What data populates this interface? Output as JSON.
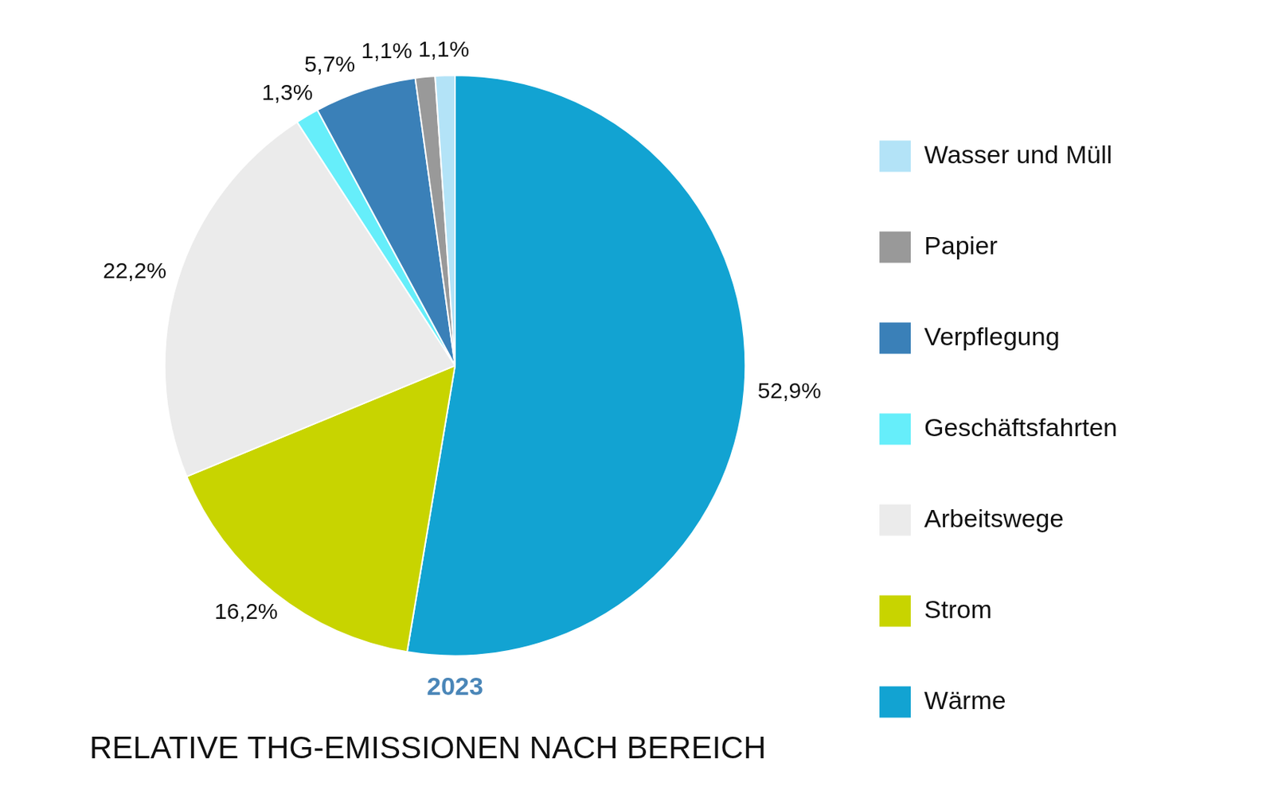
{
  "chart_data": {
    "type": "pie",
    "title": "RELATIVE THG-EMISSIONEN NACH BEREICH",
    "subtitle": "2023",
    "categories": [
      "Wärme",
      "Strom",
      "Arbeitswege",
      "Geschäftsfahrten",
      "Verpflegung",
      "Papier",
      "Wasser und Müll"
    ],
    "values": [
      52.9,
      16.2,
      22.2,
      1.3,
      5.7,
      1.1,
      1.1
    ],
    "value_labels": [
      "52,9%",
      "16,2%",
      "22,2%",
      "1,3%",
      "5,7%",
      "1,1%",
      "1,1%"
    ],
    "colors": [
      "#12a3d2",
      "#c8d400",
      "#ebebeb",
      "#66eefa",
      "#3a80b8",
      "#999999",
      "#b3e3f7"
    ],
    "data_labels": true,
    "legend": "right"
  }
}
